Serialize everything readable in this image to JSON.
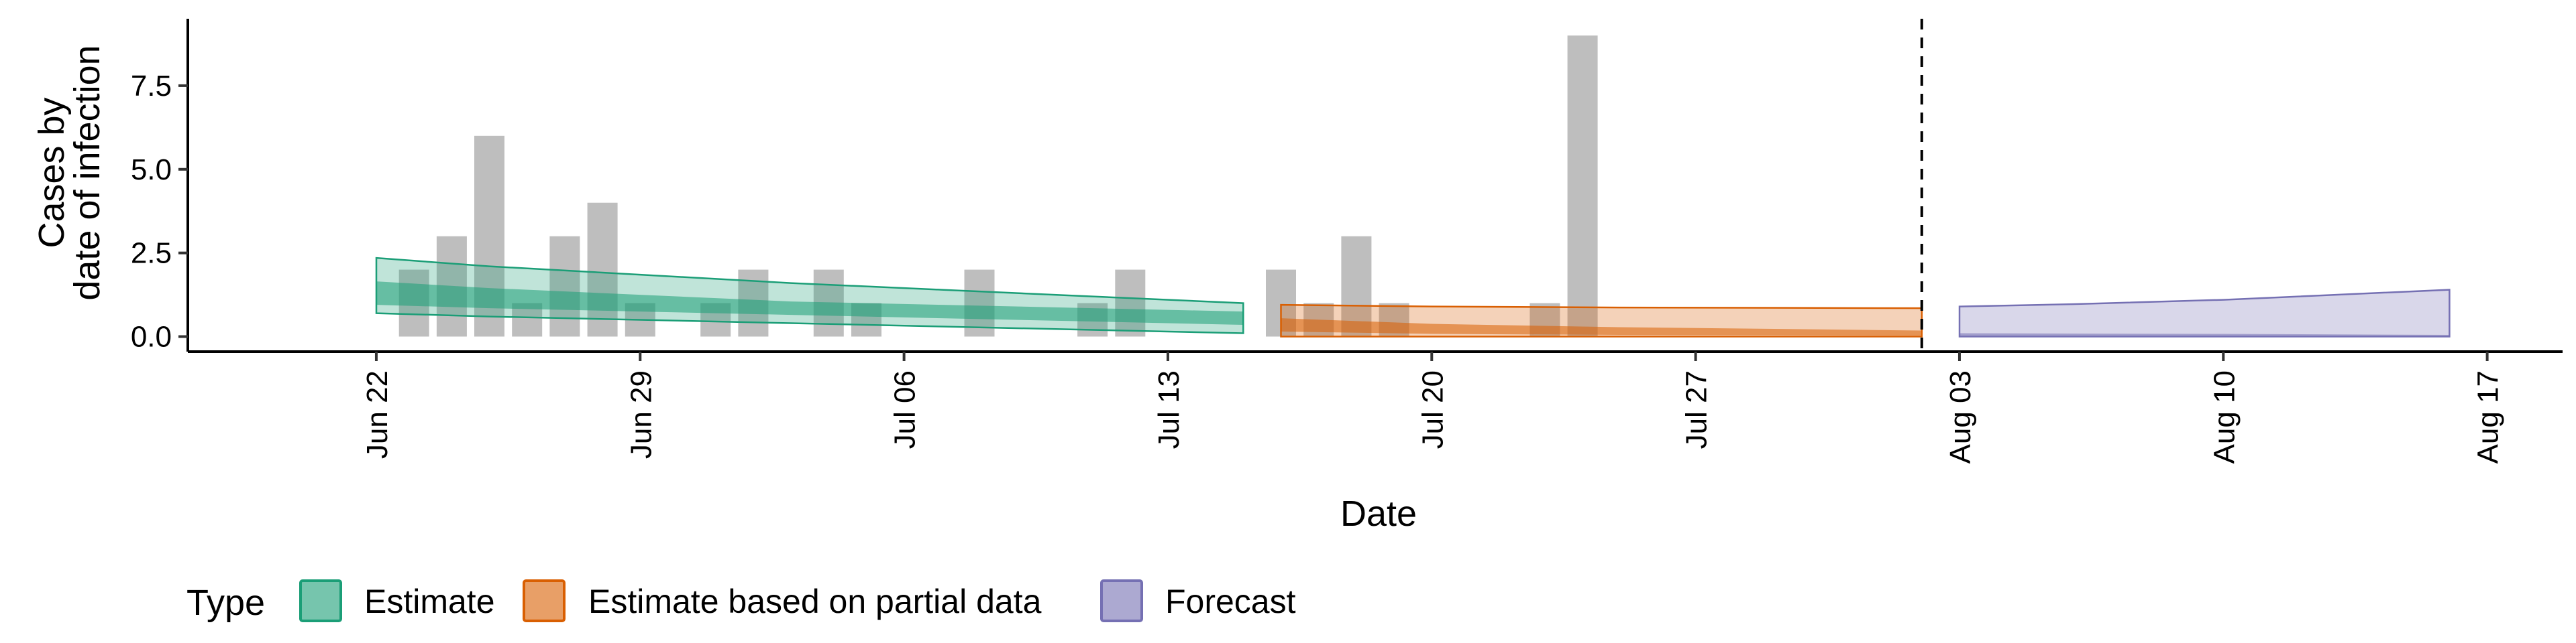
{
  "chart_data": {
    "type": "bar+ribbon",
    "title": "",
    "xlabel": "Date",
    "ylabel_lines": [
      "Cases by",
      "date of infection"
    ],
    "ylim": [
      -0.45,
      9.5
    ],
    "xlim": [
      "2020-06-17",
      "2020-08-19"
    ],
    "grid": false,
    "legend_position": "bottom-left",
    "y_ticks": [
      {
        "value": 0,
        "label": "0.0"
      },
      {
        "value": 2.5,
        "label": "2.5"
      },
      {
        "value": 5,
        "label": "5.0"
      },
      {
        "value": 7.5,
        "label": "7.5"
      }
    ],
    "x_ticks": [
      {
        "date": "2020-06-22",
        "label": "Jun 22"
      },
      {
        "date": "2020-06-29",
        "label": "Jun 29"
      },
      {
        "date": "2020-07-06",
        "label": "Jul 06"
      },
      {
        "date": "2020-07-13",
        "label": "Jul 13"
      },
      {
        "date": "2020-07-20",
        "label": "Jul 20"
      },
      {
        "date": "2020-07-27",
        "label": "Jul 27"
      },
      {
        "date": "2020-08-03",
        "label": "Aug 03"
      },
      {
        "date": "2020-08-10",
        "label": "Aug 10"
      },
      {
        "date": "2020-08-17",
        "label": "Aug 17"
      }
    ],
    "observed_cases": {
      "color": "#bebebe",
      "points": [
        {
          "date": "2020-06-23",
          "value": 2
        },
        {
          "date": "2020-06-24",
          "value": 3
        },
        {
          "date": "2020-06-25",
          "value": 6
        },
        {
          "date": "2020-06-26",
          "value": 1
        },
        {
          "date": "2020-06-27",
          "value": 3
        },
        {
          "date": "2020-06-28",
          "value": 4
        },
        {
          "date": "2020-06-29",
          "value": 1
        },
        {
          "date": "2020-07-01",
          "value": 1
        },
        {
          "date": "2020-07-02",
          "value": 2
        },
        {
          "date": "2020-07-04",
          "value": 2
        },
        {
          "date": "2020-07-05",
          "value": 1
        },
        {
          "date": "2020-07-08",
          "value": 2
        },
        {
          "date": "2020-07-11",
          "value": 1
        },
        {
          "date": "2020-07-12",
          "value": 2
        },
        {
          "date": "2020-07-16",
          "value": 2
        },
        {
          "date": "2020-07-17",
          "value": 1
        },
        {
          "date": "2020-07-18",
          "value": 3
        },
        {
          "date": "2020-07-19",
          "value": 1
        },
        {
          "date": "2020-07-23",
          "value": 1
        },
        {
          "date": "2020-07-24",
          "value": 9
        }
      ]
    },
    "forecast_start": "2020-08-02",
    "series": [
      {
        "name": "Estimate",
        "color": "#1b9e77",
        "dates": [
          "2020-06-22",
          "2020-06-25",
          "2020-06-29",
          "2020-07-03",
          "2020-07-07",
          "2020-07-11",
          "2020-07-15"
        ],
        "outer_lower": [
          0.7,
          0.6,
          0.5,
          0.4,
          0.3,
          0.2,
          0.1
        ],
        "outer_upper": [
          2.35,
          2.1,
          1.85,
          1.6,
          1.4,
          1.2,
          1.0
        ],
        "inner_lower": [
          0.95,
          0.85,
          0.75,
          0.65,
          0.55,
          0.45,
          0.35
        ],
        "inner_upper": [
          1.65,
          1.45,
          1.25,
          1.05,
          0.95,
          0.85,
          0.75
        ]
      },
      {
        "name": "Estimate based on partial data",
        "color": "#d95f02",
        "dates": [
          "2020-07-16",
          "2020-07-20",
          "2020-07-25",
          "2020-08-02"
        ],
        "outer_lower": [
          0.0,
          0.0,
          0.0,
          0.0
        ],
        "outer_upper": [
          0.95,
          0.9,
          0.87,
          0.85
        ],
        "inner_lower": [
          0.15,
          0.08,
          0.05,
          0.03
        ],
        "inner_upper": [
          0.55,
          0.38,
          0.28,
          0.18
        ]
      },
      {
        "name": "Forecast",
        "color": "#7570b3",
        "dates": [
          "2020-08-03",
          "2020-08-06",
          "2020-08-10",
          "2020-08-16"
        ],
        "outer_lower": [
          0.0,
          0.0,
          0.0,
          0.0
        ],
        "outer_upper": [
          0.9,
          0.97,
          1.1,
          1.4
        ],
        "inner_lower": [
          0.0,
          0.0,
          0.0,
          0.0
        ],
        "inner_upper": [
          0.1,
          0.09,
          0.08,
          0.05
        ]
      }
    ],
    "legend": {
      "title": "Type",
      "entries": [
        "Estimate",
        "Estimate based on partial data",
        "Forecast"
      ]
    }
  }
}
